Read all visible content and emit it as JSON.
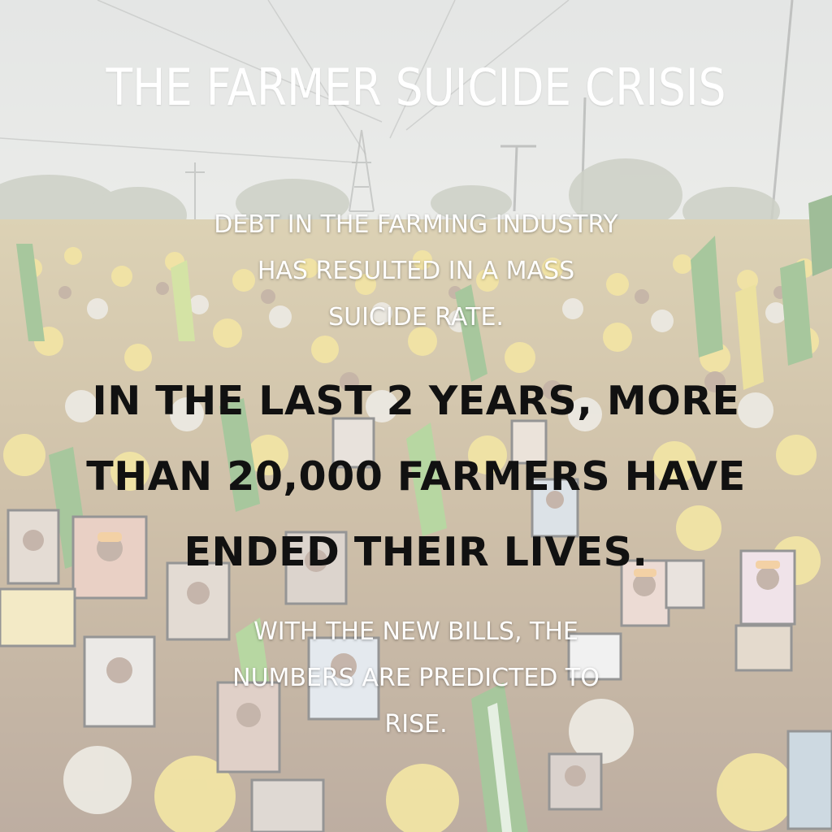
{
  "title": "THE FARMER SUICIDE CRISIS",
  "intro": {
    "line1": "DEBT IN THE FARMING INDUSTRY",
    "line2": "HAS RESULTED IN A MASS",
    "line3": "SUICIDE RATE."
  },
  "headline": {
    "line1": "IN THE LAST 2 YEARS, MORE",
    "line2": "THAN 20,000 FARMERS HAVE",
    "line3": "ENDED THEIR LIVES."
  },
  "outro": {
    "line1": "WITH THE NEW BILLS, THE",
    "line2": "NUMBERS ARE PREDICTED TO",
    "line3": "RISE."
  },
  "colors": {
    "sky": "#d9dcd8",
    "crowd_yellow": "#e3c84a",
    "flag_green": "#4f8f3a",
    "headline_text": "#111111",
    "light_text": "#ffffff"
  }
}
